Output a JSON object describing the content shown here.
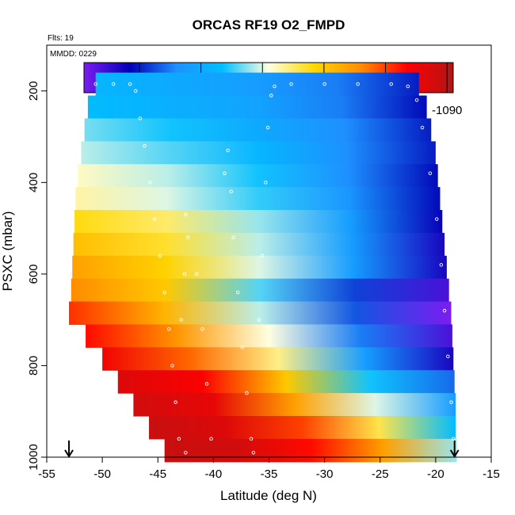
{
  "chart_data": {
    "type": "heatmap",
    "title": "ORCAS RF19 O2_FMPD",
    "annotations": [
      "Flts: 19",
      "MMDD: 0229"
    ],
    "xlabel": "Latitude (deg N)",
    "ylabel": "PSXC (mbar)",
    "xlim": [
      -55,
      -15
    ],
    "ylim": [
      1000,
      100
    ],
    "x_ticks": [
      -55,
      -50,
      -45,
      -40,
      -35,
      -30,
      -25,
      -20,
      -15
    ],
    "y_ticks": [
      200,
      400,
      600,
      800,
      1000
    ],
    "colorbar": {
      "range": [
        -1149,
        -1089
      ],
      "ticks": [
        -1140,
        -1130,
        -1120,
        -1110,
        -1100,
        -1090
      ],
      "colors": [
        "#7b1cf0",
        "#0000b4",
        "#1e90ff",
        "#00bfff",
        "#ffffe0",
        "#ffd700",
        "#ff8c00",
        "#ff0000",
        "#b41414"
      ]
    },
    "bands": [
      {
        "p": 185,
        "x0": -50.6,
        "x1": -21.5,
        "cols": [
          -1128,
          -1130,
          -1132,
          -1135,
          -1140
        ]
      },
      {
        "p": 235,
        "x0": -51.3,
        "x1": -20.8,
        "cols": [
          -1127,
          -1129,
          -1131,
          -1135,
          -1141
        ]
      },
      {
        "p": 285,
        "x0": -51.6,
        "x1": -20.4,
        "cols": [
          -1123,
          -1126,
          -1130,
          -1134,
          -1140
        ]
      },
      {
        "p": 335,
        "x0": -51.9,
        "x1": -20.0,
        "cols": [
          -1121,
          -1124,
          -1128,
          -1134,
          -1140
        ]
      },
      {
        "p": 385,
        "x0": -52.2,
        "x1": -19.8,
        "cols": [
          -1118,
          -1121,
          -1126,
          -1134,
          -1141
        ]
      },
      {
        "p": 435,
        "x0": -52.4,
        "x1": -19.6,
        "cols": [
          -1117,
          -1120,
          -1125,
          -1133,
          -1141
        ]
      },
      {
        "p": 485,
        "x0": -52.5,
        "x1": -19.4,
        "cols": [
          -1112,
          -1115,
          -1122,
          -1132,
          -1142
        ]
      },
      {
        "p": 535,
        "x0": -52.6,
        "x1": -19.2,
        "cols": [
          -1109,
          -1113,
          -1121,
          -1132,
          -1143
        ]
      },
      {
        "p": 585,
        "x0": -52.7,
        "x1": -19.0,
        "cols": [
          -1106,
          -1111,
          -1120,
          -1132,
          -1143
        ]
      },
      {
        "p": 635,
        "x0": -52.8,
        "x1": -18.8,
        "cols": [
          -1104,
          -1110,
          -1124,
          -1138,
          -1146
        ]
      },
      {
        "p": 685,
        "x0": -53.0,
        "x1": -18.6,
        "cols": [
          -1099,
          -1108,
          -1121,
          -1137,
          -1149
        ]
      },
      {
        "p": 735,
        "x0": -51.5,
        "x1": -18.5,
        "cols": [
          -1097,
          -1105,
          -1119,
          -1135,
          -1146
        ]
      },
      {
        "p": 785,
        "x0": -50.0,
        "x1": -18.4,
        "cols": [
          -1095,
          -1102,
          -1116,
          -1132,
          -1143
        ]
      },
      {
        "p": 835,
        "x0": -48.6,
        "x1": -18.3,
        "cols": [
          -1093,
          -1096,
          -1110,
          -1126,
          -1136
        ]
      },
      {
        "p": 885,
        "x0": -47.2,
        "x1": -18.2,
        "cols": [
          -1092,
          -1094,
          -1106,
          -1120,
          -1132
        ]
      },
      {
        "p": 935,
        "x0": -45.8,
        "x1": -18.2,
        "cols": [
          -1091,
          -1093,
          -1100,
          -1114,
          -1127
        ]
      },
      {
        "p": 985,
        "x0": -44.4,
        "x1": -18.1,
        "cols": [
          -1091,
          -1092,
          -1097,
          -1106,
          -1122
        ]
      }
    ],
    "arrows": [
      {
        "x": -53.0
      },
      {
        "x": -18.3
      }
    ],
    "track_points": [
      {
        "x": -50.6,
        "p": 185
      },
      {
        "x": -49.0,
        "p": 185
      },
      {
        "x": -47.5,
        "p": 185
      },
      {
        "x": -47.0,
        "p": 200
      },
      {
        "x": -46.6,
        "p": 260
      },
      {
        "x": -46.2,
        "p": 320
      },
      {
        "x": -45.7,
        "p": 400
      },
      {
        "x": -45.3,
        "p": 480
      },
      {
        "x": -44.8,
        "p": 560
      },
      {
        "x": -44.4,
        "p": 640
      },
      {
        "x": -44.0,
        "p": 720
      },
      {
        "x": -43.7,
        "p": 800
      },
      {
        "x": -43.4,
        "p": 880
      },
      {
        "x": -43.1,
        "p": 960
      },
      {
        "x": -42.5,
        "p": 990
      },
      {
        "x": -42.9,
        "p": 700
      },
      {
        "x": -42.6,
        "p": 600
      },
      {
        "x": -42.3,
        "p": 520
      },
      {
        "x": -42.5,
        "p": 470
      },
      {
        "x": -41.5,
        "p": 600
      },
      {
        "x": -41.0,
        "p": 720
      },
      {
        "x": -40.6,
        "p": 840
      },
      {
        "x": -40.2,
        "p": 960
      },
      {
        "x": -39.0,
        "p": 380
      },
      {
        "x": -38.7,
        "p": 330
      },
      {
        "x": -38.4,
        "p": 420
      },
      {
        "x": -38.2,
        "p": 520
      },
      {
        "x": -37.8,
        "p": 640
      },
      {
        "x": -37.4,
        "p": 760
      },
      {
        "x": -37.0,
        "p": 860
      },
      {
        "x": -36.6,
        "p": 960
      },
      {
        "x": -36.4,
        "p": 990
      },
      {
        "x": -35.9,
        "p": 700
      },
      {
        "x": -35.6,
        "p": 560
      },
      {
        "x": -35.3,
        "p": 400
      },
      {
        "x": -35.1,
        "p": 280
      },
      {
        "x": -34.8,
        "p": 210
      },
      {
        "x": -34.5,
        "p": 190
      },
      {
        "x": -33.0,
        "p": 185
      },
      {
        "x": -30.0,
        "p": 185
      },
      {
        "x": -27.0,
        "p": 185
      },
      {
        "x": -24.0,
        "p": 185
      },
      {
        "x": -22.5,
        "p": 190
      },
      {
        "x": -21.7,
        "p": 220
      },
      {
        "x": -21.2,
        "p": 280
      },
      {
        "x": -20.5,
        "p": 380
      },
      {
        "x": -19.9,
        "p": 480
      },
      {
        "x": -19.5,
        "p": 580
      },
      {
        "x": -19.2,
        "p": 680
      },
      {
        "x": -18.9,
        "p": 780
      },
      {
        "x": -18.6,
        "p": 880
      },
      {
        "x": -18.4,
        "p": 960
      }
    ]
  }
}
